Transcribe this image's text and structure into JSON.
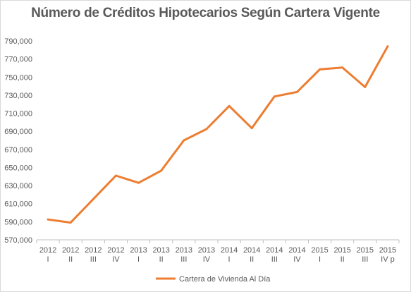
{
  "chart_data": {
    "type": "line",
    "title": "Número de Créditos Hipotecarios Según Cartera Vigente",
    "xlabel": "",
    "ylabel": "",
    "ylim": [
      570000,
      790000
    ],
    "ytick_labels": [
      "790,000",
      "770,000",
      "750,000",
      "730,000",
      "710,000",
      "690,000",
      "670,000",
      "650,000",
      "630,000",
      "610,000",
      "590,000",
      "570,000"
    ],
    "categories": [
      [
        "2012",
        "I"
      ],
      [
        "2012",
        "II"
      ],
      [
        "2012",
        "III"
      ],
      [
        "2012",
        "IV"
      ],
      [
        "2013",
        "I"
      ],
      [
        "2013",
        "II"
      ],
      [
        "2013",
        "III"
      ],
      [
        "2013",
        "IV"
      ],
      [
        "2014",
        "I"
      ],
      [
        "2014",
        "II"
      ],
      [
        "2014",
        "III"
      ],
      [
        "2014",
        "IV"
      ],
      [
        "2015",
        "I"
      ],
      [
        "2015",
        "II"
      ],
      [
        "2015",
        "III"
      ],
      [
        "2015",
        "IV p"
      ]
    ],
    "series": [
      {
        "name": "Cartera de Vivienda Al Día",
        "color": "#ED7D31",
        "values": [
          592500,
          589000,
          615000,
          641000,
          633000,
          646500,
          680000,
          692500,
          718000,
          693500,
          728500,
          733500,
          758500,
          760500,
          739000,
          784000
        ]
      }
    ],
    "grid": false,
    "legend_position": "bottom"
  }
}
